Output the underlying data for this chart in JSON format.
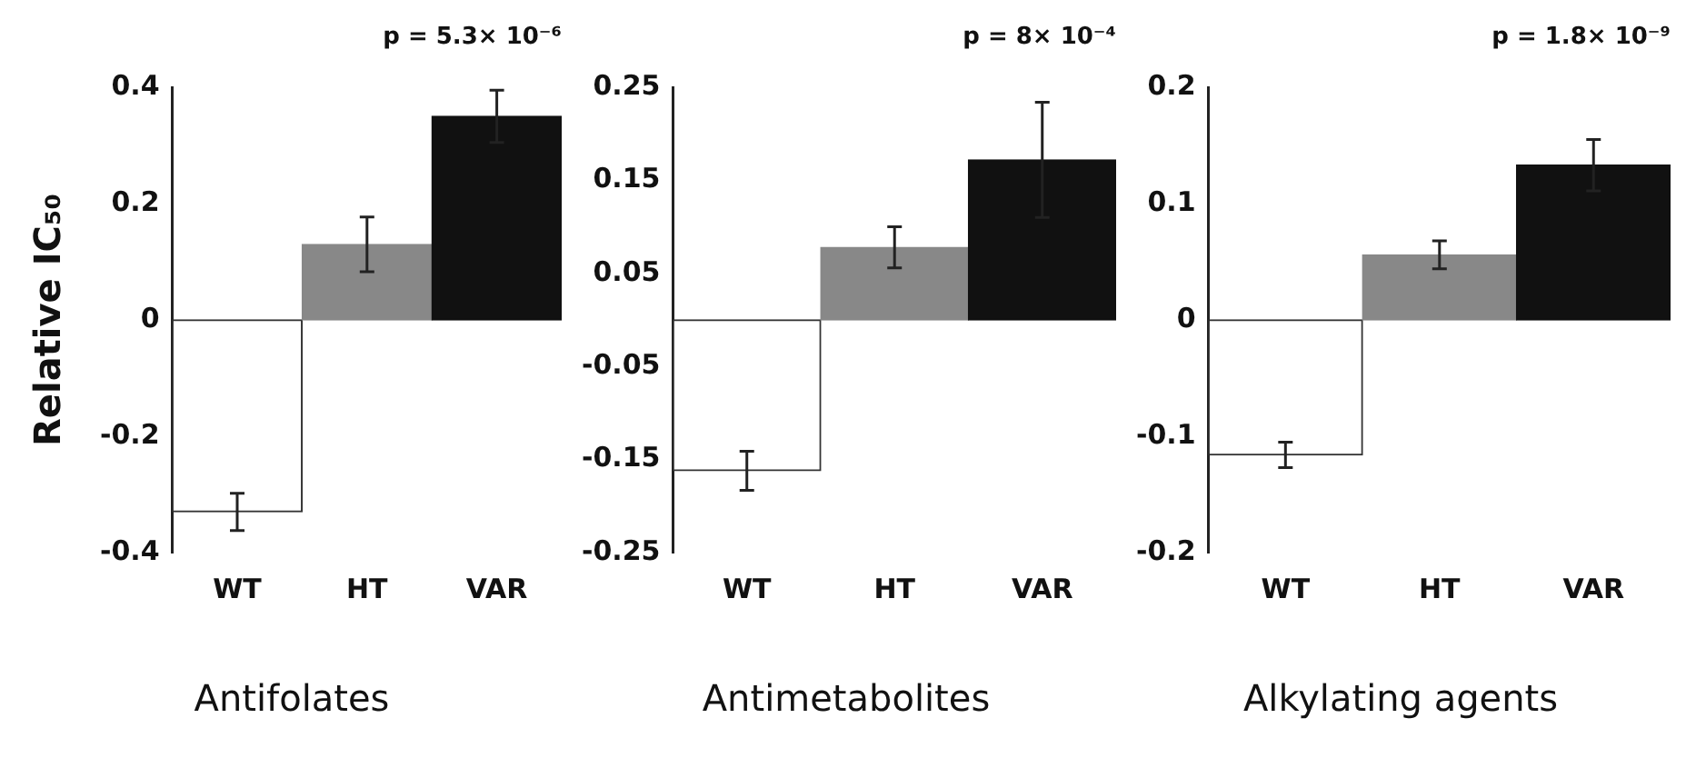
{
  "chart_data": [
    {
      "type": "bar",
      "title": "Antifolates",
      "ylabel": "Relative IC₅₀",
      "categories": [
        "WT",
        "HT",
        "VAR"
      ],
      "values": [
        -0.33,
        0.13,
        0.35
      ],
      "errors": [
        0.032,
        0.047,
        0.045
      ],
      "colors": [
        "#ffffff",
        "#888888",
        "#111111"
      ],
      "ylim": [
        -0.4,
        0.4
      ],
      "yticks": [
        -0.4,
        -0.2,
        0,
        0.2,
        0.4
      ],
      "grid": false,
      "annotations": [
        "p = 5.3× 10⁻⁶"
      ]
    },
    {
      "type": "bar",
      "title": "Antimetabolites",
      "categories": [
        "WT",
        "HT",
        "VAR"
      ],
      "values": [
        -0.162,
        0.078,
        0.172
      ],
      "errors": [
        0.021,
        0.022,
        0.062
      ],
      "colors": [
        "#ffffff",
        "#888888",
        "#111111"
      ],
      "ylim": [
        -0.25,
        0.25
      ],
      "yticks": [
        -0.25,
        -0.15,
        -0.05,
        0.05,
        0.15,
        0.25
      ],
      "grid": false,
      "annotations": [
        "p = 8× 10⁻⁴"
      ]
    },
    {
      "type": "bar",
      "title": "Alkylating agents",
      "categories": [
        "WT",
        "HT",
        "VAR"
      ],
      "values": [
        -0.116,
        0.056,
        0.133
      ],
      "errors": [
        0.011,
        0.012,
        0.022
      ],
      "colors": [
        "#ffffff",
        "#888888",
        "#111111"
      ],
      "ylim": [
        -0.2,
        0.2
      ],
      "yticks": [
        -0.2,
        -0.1,
        0,
        0.1,
        0.2
      ],
      "grid": false,
      "annotations": [
        "p = 1.8× 10⁻⁹"
      ]
    }
  ]
}
